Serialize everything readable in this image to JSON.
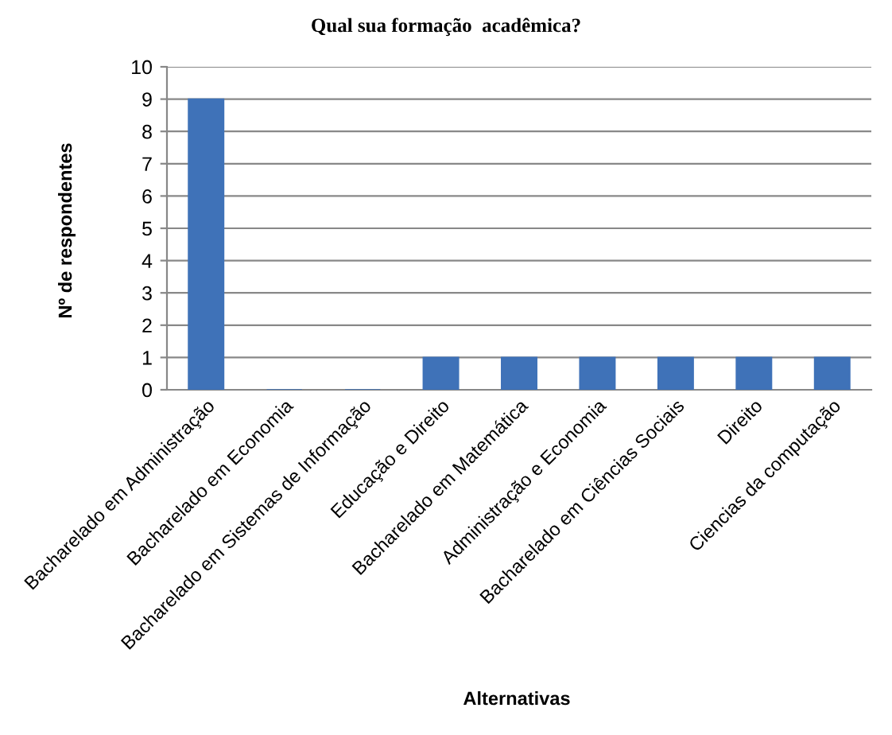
{
  "chart_data": {
    "type": "bar",
    "title": "Qual sua formação  acadêmica?",
    "xlabel": "Alternativas",
    "ylabel": "Nº de respondentes",
    "categories": [
      "Bacharelado em Administração",
      "Bacharelado em Economia",
      "Bacharelado em Sistemas de Informação",
      "Educação e Direito",
      "Bacharelado em Matemática",
      "Administração e Economia",
      "Bacharelado em Ciências Sociais",
      "Direito",
      "Ciencias da computação"
    ],
    "values": [
      9,
      0,
      0,
      1,
      1,
      1,
      1,
      1,
      1
    ],
    "color": "#3f72b8",
    "ylim": [
      0,
      10
    ],
    "yticks": [
      0,
      1,
      2,
      3,
      4,
      5,
      6,
      7,
      8,
      9,
      10
    ],
    "grid": "y",
    "legend": false
  }
}
